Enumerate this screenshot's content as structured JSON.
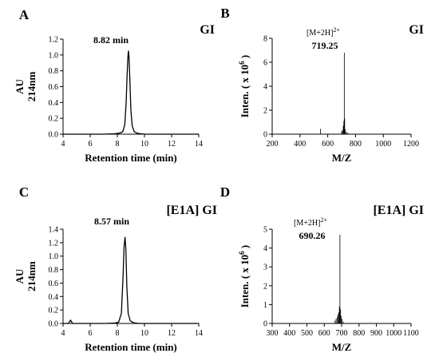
{
  "chart_data": [
    {
      "panel": "A",
      "type": "line",
      "title": "GI",
      "xlabel": "Retention time (min)",
      "ylabel": [
        "AU",
        "214nm"
      ],
      "xlim": [
        4,
        14
      ],
      "ylim": [
        0,
        1.2
      ],
      "xticks": [
        4,
        6,
        8,
        10,
        12,
        14
      ],
      "yticks": [
        0.0,
        0.2,
        0.4,
        0.6,
        0.8,
        1.0,
        1.2
      ],
      "yticklabels": [
        "0.0",
        "0.2",
        "0.4",
        "0.6",
        "0.8",
        "1.0",
        "1.2"
      ],
      "peak": {
        "x": 8.82,
        "y": 1.05,
        "label": "8.82 min"
      },
      "series": [
        {
          "x": [
            4.0,
            4.5,
            5.0,
            6.0,
            7.0,
            7.8,
            8.2,
            8.4,
            8.55,
            8.65,
            8.72,
            8.78,
            8.82,
            8.86,
            8.92,
            9.0,
            9.1,
            9.25,
            9.5,
            10.0,
            11.0,
            12.0,
            13.0,
            14.0
          ],
          "y": [
            0.0,
            0.0,
            0.0,
            0.0,
            0.0,
            0.005,
            0.015,
            0.03,
            0.12,
            0.4,
            0.75,
            0.98,
            1.05,
            0.98,
            0.7,
            0.3,
            0.1,
            0.03,
            0.01,
            0.0,
            0.0,
            0.0,
            0.0,
            0.0
          ]
        }
      ]
    },
    {
      "panel": "B",
      "type": "bar",
      "title": "GI",
      "xlabel": "M/Z",
      "ylabel": "Inten. ( x 10",
      "ylabel_sup": "6",
      "ylabel_end": ")",
      "xlim": [
        200,
        1200
      ],
      "ylim": [
        0,
        8
      ],
      "xticks": [
        200,
        400,
        600,
        800,
        1000,
        1200
      ],
      "yticks": [
        0,
        2,
        4,
        6,
        8
      ],
      "peak": {
        "x": 719.25,
        "y": 6.8,
        "ion": "[M+2H]",
        "ion_sup": "2+",
        "label": "719.25"
      },
      "series": [
        {
          "x": [
            548,
            700,
            706,
            712,
            716,
            719.25,
            722,
            727,
            734,
            742,
            752
          ],
          "y": [
            0.45,
            0.25,
            0.35,
            0.7,
            1.1,
            6.8,
            1.3,
            0.4,
            0.2,
            0.12,
            0.05
          ]
        }
      ]
    },
    {
      "panel": "C",
      "type": "line",
      "title": "[E1A] GI",
      "xlabel": "Retention time (min)",
      "ylabel": [
        "AU",
        "214nm"
      ],
      "xlim": [
        4,
        14
      ],
      "ylim": [
        0,
        1.4
      ],
      "xticks": [
        4,
        6,
        8,
        10,
        12,
        14
      ],
      "yticks": [
        0.0,
        0.2,
        0.4,
        0.6,
        0.8,
        1.0,
        1.2,
        1.4
      ],
      "yticklabels": [
        "0.0",
        "0.2",
        "0.4",
        "0.6",
        "0.8",
        "1.0",
        "1.2",
        "1.4"
      ],
      "peak": {
        "x": 8.57,
        "y": 1.28,
        "label": "8.57 min"
      },
      "series": [
        {
          "x": [
            4.0,
            4.4,
            4.55,
            4.7,
            5.0,
            6.0,
            7.0,
            7.8,
            8.1,
            8.3,
            8.42,
            8.5,
            8.57,
            8.63,
            8.7,
            8.8,
            8.95,
            9.2,
            9.6,
            10.0,
            11.0,
            12.0,
            13.0,
            14.0
          ],
          "y": [
            0.0,
            0.0,
            0.05,
            0.0,
            0.0,
            0.0,
            0.0,
            0.005,
            0.02,
            0.15,
            0.7,
            1.15,
            1.28,
            1.1,
            0.55,
            0.15,
            0.04,
            0.01,
            0.0,
            0.0,
            0.0,
            0.0,
            0.0,
            0.0
          ]
        }
      ]
    },
    {
      "panel": "D",
      "type": "bar",
      "title": "[E1A] GI",
      "xlabel": "M/Z",
      "ylabel": "Inten. ( x 10",
      "ylabel_sup": "6",
      "ylabel_end": ")",
      "xlim": [
        300,
        1100
      ],
      "ylim": [
        0,
        5
      ],
      "xticks": [
        300,
        400,
        500,
        600,
        700,
        800,
        900,
        1000,
        1100
      ],
      "yticks": [
        0,
        1,
        2,
        3,
        4,
        5
      ],
      "peak": {
        "x": 690.26,
        "y": 4.7,
        "ion": "[M+2H]",
        "ion_sup": "2+",
        "label": "690.26"
      },
      "series": [
        {
          "x": [
            662,
            668,
            674,
            679,
            684,
            687,
            690.26,
            694,
            698,
            703,
            710
          ],
          "y": [
            0.15,
            0.25,
            0.35,
            0.5,
            0.6,
            0.9,
            4.7,
            0.75,
            0.4,
            0.25,
            0.1
          ]
        }
      ]
    }
  ]
}
